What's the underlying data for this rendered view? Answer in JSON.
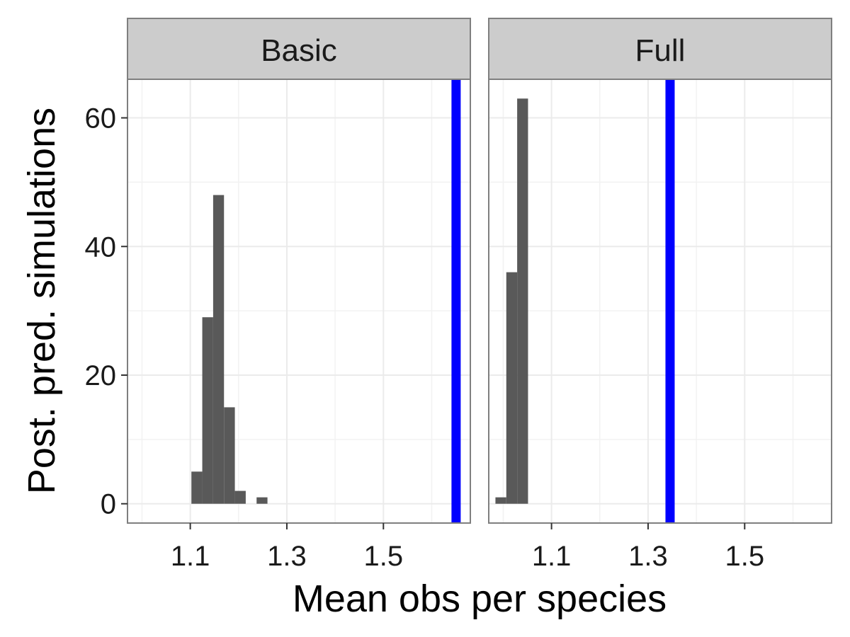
{
  "chart_data": {
    "type": "bar",
    "layout": "faceted-histogram",
    "xlabel": "Mean obs per species",
    "ylabel": "Post. pred. simulations",
    "xlim": [
      0.97,
      1.68
    ],
    "ylim": [
      -3,
      66
    ],
    "x_ticks": [
      1.1,
      1.3,
      1.5
    ],
    "x_tick_labels": [
      "1.1",
      "1.3",
      "1.5"
    ],
    "y_ticks": [
      0,
      20,
      40,
      60
    ],
    "y_tick_labels": [
      "0",
      "20",
      "40",
      "60"
    ],
    "grid": true,
    "bar_color": "#595959",
    "reference_line_color": "#0000ff",
    "facets": [
      {
        "label": "Basic",
        "bin_width": 0.0225,
        "bars": [
          {
            "x": 1.1136,
            "count": 5
          },
          {
            "x": 1.1361,
            "count": 29
          },
          {
            "x": 1.1586,
            "count": 48
          },
          {
            "x": 1.1811,
            "count": 15
          },
          {
            "x": 1.2036,
            "count": 2
          },
          {
            "x": 1.2486,
            "count": 1
          }
        ],
        "reference_x": 1.6505
      },
      {
        "label": "Full",
        "bin_width": 0.0225,
        "bars": [
          {
            "x": 0.9951,
            "count": 1
          },
          {
            "x": 1.0176,
            "count": 36
          },
          {
            "x": 1.0401,
            "count": 63
          }
        ],
        "reference_x": 1.3455
      }
    ]
  }
}
